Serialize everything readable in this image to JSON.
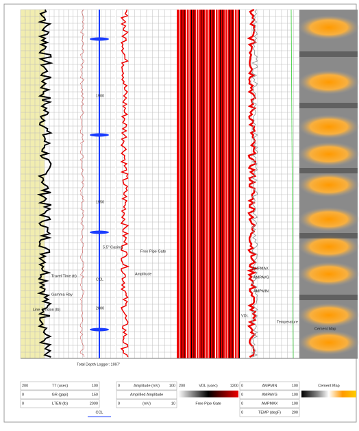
{
  "depth_labels": [
    "1900",
    "1950",
    "2000"
  ],
  "annotations": {
    "travel_time": "Travel Time (tt)",
    "gamma_ray": "Gamma Ray",
    "line_tension": "Line Tension (lb)",
    "ccl": "CCL",
    "casing": "5.5\" Casing",
    "free_pipe_gate": "Free Pipe Gate",
    "amplitude": "Amplitude",
    "total_depth": "Total Depth Logger: 1997'",
    "ampmax": "AMPMAX",
    "ampavg": "AMPAVG",
    "ampmin": "AMPMIN",
    "vdl": "VDL",
    "temperature": "Temperature",
    "cement_map": "Cement Map"
  },
  "footer": {
    "track1": [
      {
        "left": "200",
        "name": "TT (usec)",
        "right": "100"
      },
      {
        "left": "0",
        "name": "GR (gapi)",
        "right": "150"
      },
      {
        "left": "0",
        "name": "LTEN (lb)",
        "right": "2000"
      }
    ],
    "ccl": "CCL",
    "amplitude": [
      {
        "left": "0",
        "name": "Amplitude (mV)",
        "right": "100"
      },
      {
        "name": "Amplified Amplitude"
      },
      {
        "left": "0",
        "name": "(mV)",
        "right": "10"
      }
    ],
    "vdl": {
      "left": "200",
      "name": "VDL (usec)",
      "right": "1200",
      "gate": "Free Pipe Gate"
    },
    "amp": [
      {
        "left": "0",
        "name": "AMPMIN",
        "right": "100"
      },
      {
        "left": "0",
        "name": "AMPAVG",
        "right": "100"
      },
      {
        "left": "0",
        "name": "AMPMAX",
        "right": "100"
      },
      {
        "left": "0",
        "name": "TEMP (degF)",
        "right": "200"
      }
    ],
    "cement": "Cement Map"
  }
}
